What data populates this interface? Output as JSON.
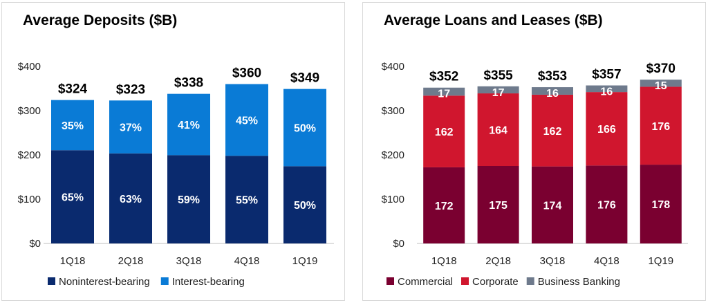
{
  "chart_data": [
    {
      "type": "bar",
      "stacked": true,
      "title": "Average Deposits ($B)",
      "categories": [
        "1Q18",
        "2Q18",
        "3Q18",
        "4Q18",
        "1Q19"
      ],
      "totals": [
        324,
        323,
        338,
        360,
        349
      ],
      "total_labels": [
        "$324",
        "$323",
        "$338",
        "$360",
        "$349"
      ],
      "series": [
        {
          "name": "Noninterest-bearing",
          "labels": [
            "65%",
            "63%",
            "59%",
            "55%",
            "50%"
          ],
          "color": "#0a2a6e"
        },
        {
          "name": "Interest-bearing",
          "labels": [
            "35%",
            "37%",
            "41%",
            "45%",
            "50%"
          ],
          "color": "#0a7bd6"
        }
      ],
      "yticks": [
        "$0",
        "$100",
        "$200",
        "$300",
        "$400"
      ],
      "ylim": [
        0,
        400
      ],
      "legend": "bottom"
    },
    {
      "type": "bar",
      "stacked": true,
      "title": "Average Loans and Leases ($B)",
      "categories": [
        "1Q18",
        "2Q18",
        "3Q18",
        "4Q18",
        "1Q19"
      ],
      "totals": [
        352,
        355,
        353,
        357,
        370
      ],
      "total_labels": [
        "$352",
        "$355",
        "$353",
        "$357",
        "$370"
      ],
      "series": [
        {
          "name": "Commercial",
          "values": [
            172,
            175,
            174,
            176,
            178
          ],
          "color": "#7a0030"
        },
        {
          "name": "Corporate",
          "values": [
            162,
            164,
            162,
            166,
            176
          ],
          "color": "#d0162e"
        },
        {
          "name": "Business Banking",
          "values": [
            17,
            17,
            16,
            16,
            15
          ],
          "color": "#6e7a8c"
        }
      ],
      "yticks": [
        "$0",
        "$100",
        "$200",
        "$300",
        "$400"
      ],
      "ylim": [
        0,
        400
      ],
      "legend": "bottom"
    }
  ]
}
